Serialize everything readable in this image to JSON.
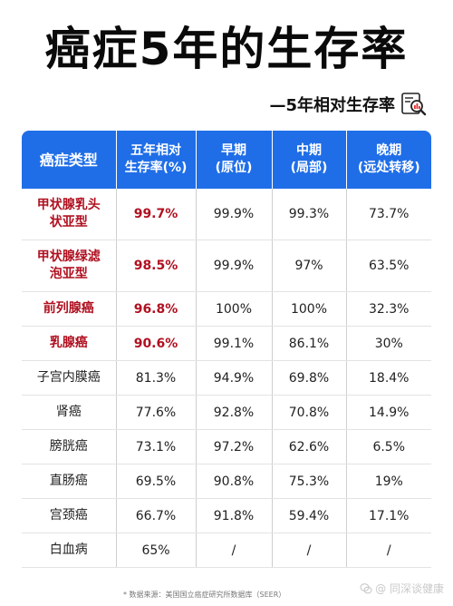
{
  "title": "癌症5年的生存率",
  "subtitle": "—5年相对生存率",
  "table": {
    "headers": [
      {
        "line1": "癌症类型",
        "line2": ""
      },
      {
        "line1": "五年相对",
        "line2": "生存率(%)"
      },
      {
        "line1": "早期",
        "line2": "(原位)"
      },
      {
        "line1": "中期",
        "line2": "(局部)"
      },
      {
        "line1": "晚期",
        "line2": "(远处转移)"
      }
    ],
    "rows": [
      {
        "type_line1": "甲状腺乳头",
        "type_line2": "状亚型",
        "five_year": "99.7%",
        "early": "99.9%",
        "mid": "99.3%",
        "late": "73.7%"
      },
      {
        "type_line1": "甲状腺绿滤",
        "type_line2": "泡亚型",
        "five_year": "98.5%",
        "early": "99.9%",
        "mid": "97%",
        "late": "63.5%"
      },
      {
        "type_line1": "前列腺癌",
        "type_line2": "",
        "five_year": "96.8%",
        "early": "100%",
        "mid": "100%",
        "late": "32.3%"
      },
      {
        "type_line1": "乳腺癌",
        "type_line2": "",
        "five_year": "90.6%",
        "early": "99.1%",
        "mid": "86.1%",
        "late": "30%"
      },
      {
        "type_line1": "子宫内膜癌",
        "type_line2": "",
        "five_year": "81.3%",
        "early": "94.9%",
        "mid": "69.8%",
        "late": "18.4%"
      },
      {
        "type_line1": "肾癌",
        "type_line2": "",
        "five_year": "77.6%",
        "early": "92.8%",
        "mid": "70.8%",
        "late": "14.9%"
      },
      {
        "type_line1": "膀胱癌",
        "type_line2": "",
        "five_year": "73.1%",
        "early": "97.2%",
        "mid": "62.6%",
        "late": "6.5%"
      },
      {
        "type_line1": "直肠癌",
        "type_line2": "",
        "five_year": "69.5%",
        "early": "90.8%",
        "mid": "75.3%",
        "late": "19%"
      },
      {
        "type_line1": "宫颈癌",
        "type_line2": "",
        "five_year": "66.7%",
        "early": "91.8%",
        "mid": "59.4%",
        "late": "17.1%"
      },
      {
        "type_line1": "白血病",
        "type_line2": "",
        "five_year": "65%",
        "early": "/",
        "mid": "/",
        "late": "/"
      }
    ]
  },
  "source": "* 数据来源：美国国立癌症研究所数据库（SEER）",
  "watermark": "@ 同深谈健康",
  "icons": {
    "subtitle_icon": "magnifier-chart-icon",
    "watermark_icon": "wechat-icon"
  },
  "colors": {
    "header_bg": "#1f6ee8",
    "highlight_text": "#b01020"
  }
}
